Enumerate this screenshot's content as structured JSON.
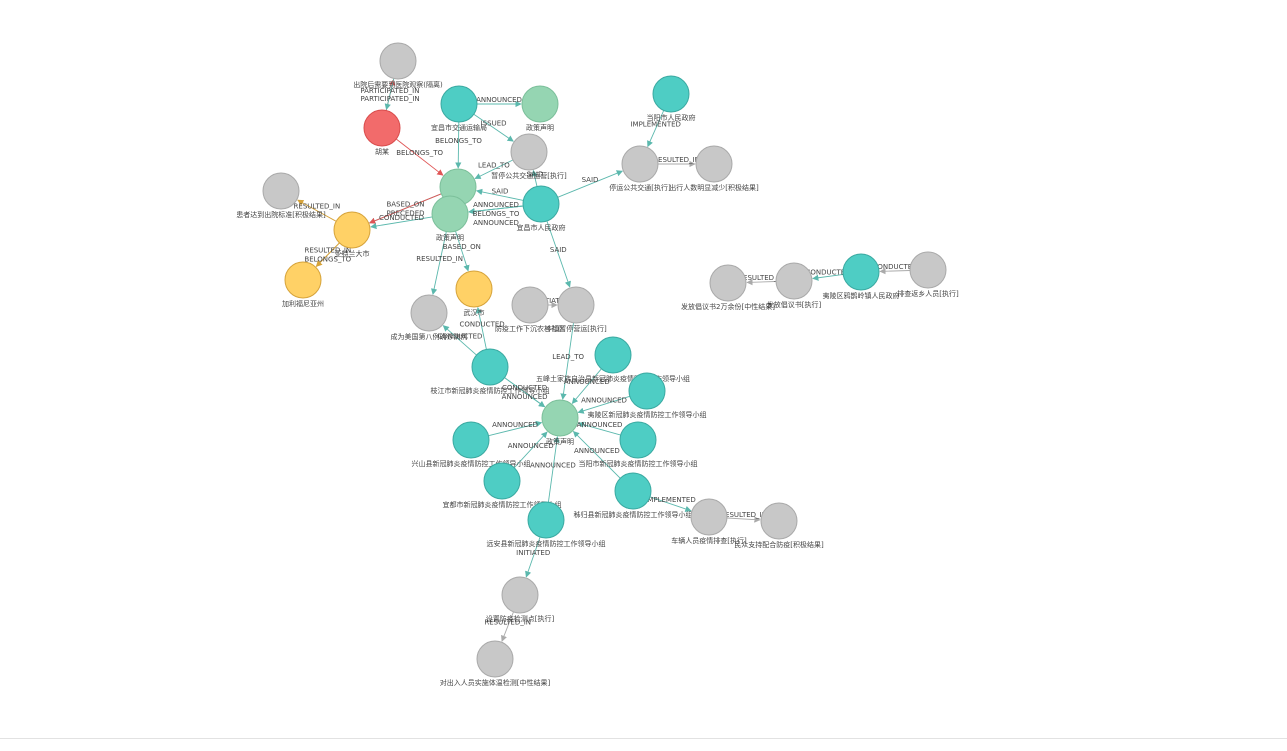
{
  "colors": {
    "teal": "#4ecdc4",
    "green": "#95d5b2",
    "gray": "#c8c8c8",
    "red": "#f26b6b",
    "yellow": "#ffd166",
    "edge_teal": "#5bb8ad",
    "edge_gray": "#aaaaaa",
    "edge_red": "#e05555",
    "edge_yellow": "#d6a33a"
  },
  "nodes": [
    {
      "id": "n1",
      "label": "出院后需要到医院观察(隔离)",
      "color": "gray"
    },
    {
      "id": "n2",
      "label": "胡某",
      "color": "red"
    },
    {
      "id": "n3",
      "label": "宜昌市交通运输局",
      "color": "teal"
    },
    {
      "id": "n4",
      "label": "政策声明",
      "color": "green"
    },
    {
      "id": "n5",
      "label": "当阳市人民政府",
      "color": "teal"
    },
    {
      "id": "n6",
      "label": "暂停公共交通运营[执行]",
      "color": "gray"
    },
    {
      "id": "n7",
      "label": "停运公共交通[执行]",
      "color": "gray"
    },
    {
      "id": "n8",
      "label": "出行人数明显减少[积极结果]",
      "color": "gray"
    },
    {
      "id": "n9",
      "label": "患者达到出院标准[积极结果]",
      "color": "gray"
    },
    {
      "id": "n10",
      "label": "病例",
      "color": "green"
    },
    {
      "id": "n11",
      "label": "政策声明",
      "color": "green"
    },
    {
      "id": "n12",
      "label": "宜昌市人民政府",
      "color": "teal"
    },
    {
      "id": "n13",
      "label": "亚特兰大市",
      "color": "yellow"
    },
    {
      "id": "n14",
      "label": "加利福尼亚州",
      "color": "yellow"
    },
    {
      "id": "n15",
      "label": "成为美国第八例确诊病例",
      "color": "gray"
    },
    {
      "id": "n16",
      "label": "武汉市",
      "color": "yellow"
    },
    {
      "id": "n17",
      "label": "防疫工作下沉农村社区",
      "color": "gray"
    },
    {
      "id": "n18",
      "label": "乡镇暂停营运[执行]",
      "color": "gray"
    },
    {
      "id": "n19",
      "label": "发放倡议书2万余份[中性结果]",
      "color": "gray"
    },
    {
      "id": "n20",
      "label": "发放倡议书[执行]",
      "color": "gray"
    },
    {
      "id": "n21",
      "label": "夷陵区鸦鹊岭镇人民政府",
      "color": "teal"
    },
    {
      "id": "n22",
      "label": "排查返乡人员[执行]",
      "color": "gray"
    },
    {
      "id": "n23",
      "label": "五峰土家族自治县新冠肺炎疫情防控工作领导小组",
      "color": "teal"
    },
    {
      "id": "n24",
      "label": "枝江市新冠肺炎疫情防控工作领导小组",
      "color": "teal"
    },
    {
      "id": "n25",
      "label": "夷陵区新冠肺炎疫情防控工作领导小组",
      "color": "teal"
    },
    {
      "id": "n26",
      "label": "政策声明",
      "color": "green"
    },
    {
      "id": "n27",
      "label": "兴山县新冠肺炎疫情防控工作领导小组",
      "color": "teal"
    },
    {
      "id": "n28",
      "label": "当阳市新冠肺炎疫情防控工作领导小组",
      "color": "teal"
    },
    {
      "id": "n29",
      "label": "宜都市新冠肺炎疫情防控工作领导小组",
      "color": "teal"
    },
    {
      "id": "n30",
      "label": "秭归县新冠肺炎疫情防控工作领导小组",
      "color": "teal"
    },
    {
      "id": "n31",
      "label": "车辆人员疫情排查[执行]",
      "color": "gray"
    },
    {
      "id": "n32",
      "label": "民众支持配合防疫[积极结果]",
      "color": "gray"
    },
    {
      "id": "n33",
      "label": "远安县新冠肺炎疫情防控工作领导小组",
      "color": "teal"
    },
    {
      "id": "n34",
      "label": "设置防疫检测点[执行]",
      "color": "gray"
    },
    {
      "id": "n35",
      "label": "对出入人员实施体温检测[中性结果]",
      "color": "gray"
    }
  ],
  "edges": [
    {
      "from": "n2",
      "to": "n1",
      "label": "PARTICIPATED_IN",
      "color": "edge_red"
    },
    {
      "from": "n1",
      "to": "n2",
      "label": "PARTICIPATED_IN",
      "color": "edge_teal"
    },
    {
      "from": "n2",
      "to": "n10",
      "label": "BELONGS_TO",
      "color": "edge_red"
    },
    {
      "from": "n3",
      "to": "n4",
      "label": "ANNOUNCED",
      "color": "edge_teal"
    },
    {
      "from": "n3",
      "to": "n10",
      "label": "BELONGS_TO",
      "color": "edge_teal"
    },
    {
      "from": "n3",
      "to": "n6",
      "label": "ISSUED",
      "color": "edge_teal"
    },
    {
      "from": "n6",
      "to": "n10",
      "label": "LEAD_TO",
      "color": "edge_teal"
    },
    {
      "from": "n12",
      "to": "n6",
      "label": "SAID",
      "color": "edge_teal"
    },
    {
      "from": "n12",
      "to": "n10",
      "label": "SAID",
      "color": "edge_teal"
    },
    {
      "from": "n12",
      "to": "n7",
      "label": "SAID",
      "color": "edge_teal"
    },
    {
      "from": "n5",
      "to": "n7",
      "label": "IMPLEMENTED",
      "color": "edge_teal"
    },
    {
      "from": "n7",
      "to": "n8",
      "label": "RESULTED_IN",
      "color": "edge_gray"
    },
    {
      "from": "n12",
      "to": "n11",
      "label": "ANNOUNCED",
      "color": "edge_teal"
    },
    {
      "from": "n12",
      "to": "n11",
      "label": "BELONGS_TO",
      "color": "edge_teal"
    },
    {
      "from": "n12",
      "to": "n11",
      "label": "ANNOUNCED",
      "color": "edge_teal"
    },
    {
      "from": "n12",
      "to": "n18",
      "label": "SAID",
      "color": "edge_teal"
    },
    {
      "from": "n10",
      "to": "n13",
      "label": "BASED_ON",
      "color": "edge_teal"
    },
    {
      "from": "n10",
      "to": "n13",
      "label": "PRECEDED",
      "color": "edge_red"
    },
    {
      "from": "n13",
      "to": "n9",
      "label": "RESULTED_IN",
      "color": "edge_yellow"
    },
    {
      "from": "n11",
      "to": "n13",
      "label": "CONDUCTED",
      "color": "edge_teal"
    },
    {
      "from": "n13",
      "to": "n14",
      "label": "RESULTED_IN",
      "color": "edge_yellow"
    },
    {
      "from": "n13",
      "to": "n14",
      "label": "BELONGS_TO",
      "color": "edge_yellow"
    },
    {
      "from": "n11",
      "to": "n15",
      "label": "RESULTED_IN",
      "color": "edge_teal"
    },
    {
      "from": "n11",
      "to": "n16",
      "label": "BASED_ON",
      "color": "edge_teal"
    },
    {
      "from": "n24",
      "to": "n16",
      "label": "CONDUCTED",
      "color": "edge_teal"
    },
    {
      "from": "n24",
      "to": "n15",
      "label": "CONDUCTED",
      "color": "edge_teal"
    },
    {
      "from": "n24",
      "to": "n26",
      "label": "CONDUCTED",
      "color": "edge_teal"
    },
    {
      "from": "n24",
      "to": "n26",
      "label": "ANNOUNCED",
      "color": "edge_teal"
    },
    {
      "from": "n17",
      "to": "n18",
      "label": "INITIATED",
      "color": "edge_gray"
    },
    {
      "from": "n18",
      "to": "n26",
      "label": "LEAD_TO",
      "color": "edge_teal"
    },
    {
      "from": "n20",
      "to": "n19",
      "label": "RESULTED_IN",
      "color": "edge_gray"
    },
    {
      "from": "n21",
      "to": "n20",
      "label": "CONDUCTED",
      "color": "edge_teal"
    },
    {
      "from": "n22",
      "to": "n21",
      "label": "CONDUCTED",
      "color": "edge_gray"
    },
    {
      "from": "n23",
      "to": "n26",
      "label": "ANNOUNCED",
      "color": "edge_teal"
    },
    {
      "from": "n25",
      "to": "n26",
      "label": "ANNOUNCED",
      "color": "edge_teal"
    },
    {
      "from": "n27",
      "to": "n26",
      "label": "ANNOUNCED",
      "color": "edge_teal"
    },
    {
      "from": "n28",
      "to": "n26",
      "label": "ANNOUNCED",
      "color": "edge_teal"
    },
    {
      "from": "n29",
      "to": "n26",
      "label": "ANNOUNCED",
      "color": "edge_teal"
    },
    {
      "from": "n30",
      "to": "n26",
      "label": "ANNOUNCED",
      "color": "edge_teal"
    },
    {
      "from": "n33",
      "to": "n26",
      "label": "ANNOUNCED",
      "color": "edge_teal"
    },
    {
      "from": "n30",
      "to": "n31",
      "label": "IMPLEMENTED",
      "color": "edge_teal"
    },
    {
      "from": "n31",
      "to": "n32",
      "label": "RESULTED_IN",
      "color": "edge_gray"
    },
    {
      "from": "n33",
      "to": "n34",
      "label": "INITIATED",
      "color": "edge_teal"
    },
    {
      "from": "n34",
      "to": "n35",
      "label": "RESULTED_IN",
      "color": "edge_gray"
    }
  ]
}
